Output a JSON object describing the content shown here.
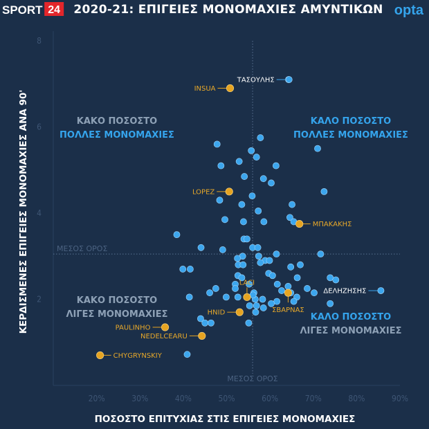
{
  "header": {
    "logo_text": "SPORT",
    "logo_number": "24",
    "title": "2020-21: ΕΠΙΓΕΙΕΣ ΜΟΝΟΜΑΧΙΕΣ ΑΜΥΝΤΙΚΩΝ",
    "brand": "opta"
  },
  "colors": {
    "background": "#1b2f49",
    "point": "#3ca6ee",
    "highlight": "#e6a422",
    "accent_blue": "#35a4ec",
    "logo_red": "#e3262b"
  },
  "chart_data": {
    "type": "scatter",
    "title": "2020-21: ΕΠΙΓΕΙΕΣ ΜΟΝΟΜΑΧΙΕΣ ΑΜΥΝΤΙΚΩΝ",
    "xlabel": "ΠΟΣΟΣΤΟ ΕΠΙΤΥΧΙΑΣ ΣΤΙΣ ΕΠΙΓΕΙΕΣ ΜΟΝΟΜΑΧΙΕΣ",
    "ylabel": "ΚΕΡΔΙΣΜΕΝΕΣ ΕΠΙΓΕΙΕΣ ΜΟΝΟΜΑΧΙΕΣ ΑΝΑ 90'",
    "xlim": [
      10,
      90
    ],
    "ylim": [
      0,
      8
    ],
    "x_ticks": [
      20,
      30,
      40,
      50,
      60,
      70,
      80,
      90
    ],
    "x_tick_labels": [
      "20%",
      "30%",
      "40%",
      "50%",
      "60%",
      "70%",
      "80%",
      "90%"
    ],
    "y_ticks": [
      2,
      4,
      6,
      8
    ],
    "y_tick_labels": [
      "2",
      "4",
      "6",
      "8"
    ],
    "average_x": 56,
    "average_y": 3.05,
    "average_x_label": "ΜΕΣΟΣ ΟΡΟΣ",
    "average_y_label": "ΜΕΣΟΣ ΟΡΟΣ",
    "quadrant_labels": [
      {
        "id": "tl",
        "lines": [
          {
            "text": "ΚΑΚΟ ΠΟΣΟΣΤΟ",
            "style": "grey"
          },
          {
            "text": "ΠΟΛΛΕΣ ΜΟΝΟΜΑΧΙΕΣ",
            "style": "blue"
          }
        ]
      },
      {
        "id": "tr",
        "lines": [
          {
            "text": "ΚΑΛΟ ΠΟΣΟΣΤΟ",
            "style": "blue"
          },
          {
            "text": "ΠΟΛΛΕΣ ΜΟΝΟΜΑΧΙΕΣ",
            "style": "blue"
          }
        ]
      },
      {
        "id": "bl",
        "lines": [
          {
            "text": "ΚΑΚΟ ΠΟΣΟΣΤΟ",
            "style": "grey"
          },
          {
            "text": "ΛΙΓΕΣ ΜΟΝΟΜΑΧΙΕΣ",
            "style": "grey"
          }
        ]
      },
      {
        "id": "br",
        "lines": [
          {
            "text": "ΚΑΛΟ ΠΟΣΟΣΤΟ",
            "style": "blue"
          },
          {
            "text": "ΛΙΓΕΣ ΜΟΝΟΜΑΧΙΕΣ",
            "style": "grey"
          }
        ]
      }
    ],
    "labeled_points": [
      {
        "name": "ΤΑΣΟΥΛΗΣ",
        "x": 64.4,
        "y": 7.1,
        "highlight": false,
        "side": "left"
      },
      {
        "name": "INSUA",
        "x": 50.8,
        "y": 6.9,
        "highlight": true,
        "side": "left"
      },
      {
        "name": "LOPEZ",
        "x": 50.6,
        "y": 4.5,
        "highlight": true,
        "side": "left"
      },
      {
        "name": "ΜΠΑΚΑΚΗΣ",
        "x": 66.8,
        "y": 3.75,
        "highlight": true,
        "side": "right"
      },
      {
        "name": "ΔΕΛΗΖΗΣΗΣ",
        "x": 85.6,
        "y": 2.2,
        "highlight": false,
        "side": "left"
      },
      {
        "name": "LACI",
        "x": 54.7,
        "y": 2.05,
        "highlight": true,
        "side": "up"
      },
      {
        "name": "ΣΒΑΡΝΑΣ",
        "x": 64.2,
        "y": 2.15,
        "highlight": true,
        "side": "down"
      },
      {
        "name": "HNID",
        "x": 53.0,
        "y": 1.7,
        "highlight": true,
        "side": "left"
      },
      {
        "name": "PAULINHO",
        "x": 35.8,
        "y": 1.35,
        "highlight": true,
        "side": "left"
      },
      {
        "name": "NEDELCEARU",
        "x": 44.3,
        "y": 1.15,
        "highlight": true,
        "side": "left"
      },
      {
        "name": "CHYGRYNSKIY",
        "x": 20.8,
        "y": 0.7,
        "highlight": true,
        "side": "right"
      }
    ],
    "points": [
      [
        64.3,
        7.1
      ],
      [
        57.8,
        5.75
      ],
      [
        47.8,
        5.6
      ],
      [
        55.7,
        5.45
      ],
      [
        71.0,
        5.5
      ],
      [
        56.9,
        5.3
      ],
      [
        52.9,
        5.2
      ],
      [
        48.7,
        5.1
      ],
      [
        61.4,
        5.1
      ],
      [
        54.1,
        4.85
      ],
      [
        58.5,
        4.8
      ],
      [
        60.3,
        4.7
      ],
      [
        72.5,
        4.5
      ],
      [
        55.9,
        4.4
      ],
      [
        48.4,
        4.3
      ],
      [
        53.5,
        4.2
      ],
      [
        65.1,
        4.2
      ],
      [
        57.3,
        4.05
      ],
      [
        64.6,
        3.9
      ],
      [
        49.6,
        3.85
      ],
      [
        65.5,
        3.8
      ],
      [
        53.9,
        3.8
      ],
      [
        58.6,
        3.8
      ],
      [
        38.5,
        3.5
      ],
      [
        54.0,
        3.4
      ],
      [
        54.7,
        3.4
      ],
      [
        44.1,
        3.2
      ],
      [
        49.1,
        3.15
      ],
      [
        56.0,
        3.2
      ],
      [
        57.2,
        3.2
      ],
      [
        61.5,
        3.05
      ],
      [
        71.7,
        3.05
      ],
      [
        53.7,
        3.0
      ],
      [
        52.5,
        2.95
      ],
      [
        57.4,
        3.0
      ],
      [
        58.9,
        2.9
      ],
      [
        59.9,
        2.9
      ],
      [
        57.8,
        2.85
      ],
      [
        52.7,
        2.8
      ],
      [
        67.0,
        2.8
      ],
      [
        53.8,
        2.8
      ],
      [
        64.8,
        2.75
      ],
      [
        39.9,
        2.7
      ],
      [
        41.6,
        2.7
      ],
      [
        59.7,
        2.6
      ],
      [
        52.6,
        2.55
      ],
      [
        73.9,
        2.5
      ],
      [
        66.3,
        2.5
      ],
      [
        60.6,
        2.55
      ],
      [
        53.5,
        2.5
      ],
      [
        75.2,
        2.45
      ],
      [
        52.0,
        2.35
      ],
      [
        55.2,
        2.35
      ],
      [
        61.7,
        2.35
      ],
      [
        64.2,
        2.3
      ],
      [
        68.6,
        2.25
      ],
      [
        52.0,
        2.25
      ],
      [
        62.7,
        2.2
      ],
      [
        47.5,
        2.25
      ],
      [
        64.8,
        2.15
      ],
      [
        70.2,
        2.15
      ],
      [
        46.1,
        2.15
      ],
      [
        56.3,
        2.15
      ],
      [
        49.9,
        2.05
      ],
      [
        52.6,
        2.05
      ],
      [
        66.2,
        2.05
      ],
      [
        56.6,
        2.0
      ],
      [
        58.3,
        2.0
      ],
      [
        56.1,
        2.1
      ],
      [
        61.6,
        1.95
      ],
      [
        73.9,
        1.9
      ],
      [
        41.4,
        2.05
      ],
      [
        60.3,
        1.9
      ],
      [
        56.9,
        1.85
      ],
      [
        58.5,
        1.8
      ],
      [
        55.3,
        1.85
      ],
      [
        56.7,
        1.7
      ],
      [
        44.0,
        1.55
      ],
      [
        46.4,
        1.45
      ],
      [
        45.0,
        1.45
      ],
      [
        55.1,
        1.45
      ],
      [
        40.9,
        0.72
      ],
      [
        65.5,
        1.95
      ]
    ]
  }
}
